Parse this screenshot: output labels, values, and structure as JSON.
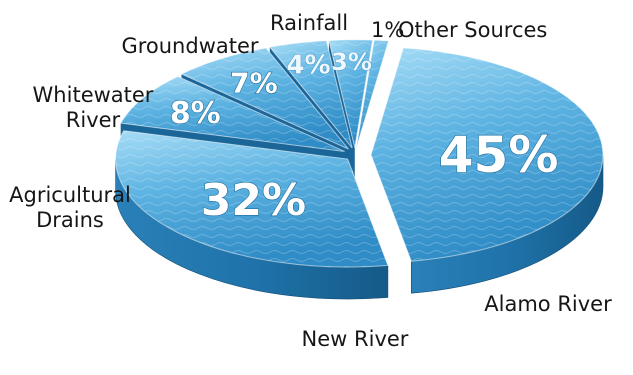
{
  "chart_data": {
    "type": "pie",
    "title": "",
    "slices": [
      {
        "label": "Alamo River",
        "value": 45,
        "value_label": "45%"
      },
      {
        "label": "New River",
        "value": 32,
        "value_label": "32%"
      },
      {
        "label": "Agricultural Drains",
        "value": 8,
        "value_label": "8%"
      },
      {
        "label": "Whitewater River",
        "value": 7,
        "value_label": "7%"
      },
      {
        "label": "Groundwater",
        "value": 4,
        "value_label": "4%"
      },
      {
        "label": "Rainfall",
        "value": 3,
        "value_label": "3%"
      },
      {
        "label": "Other Sources",
        "value": 1,
        "value_label": "1%"
      }
    ],
    "style": "3d-exploded",
    "legend": "none",
    "colors": {
      "top_light": "#8fd0f2",
      "top_mid": "#4aa6db",
      "top_dark": "#2a86c0",
      "side": "#1d6fa3",
      "side_dark": "#155a88"
    }
  }
}
